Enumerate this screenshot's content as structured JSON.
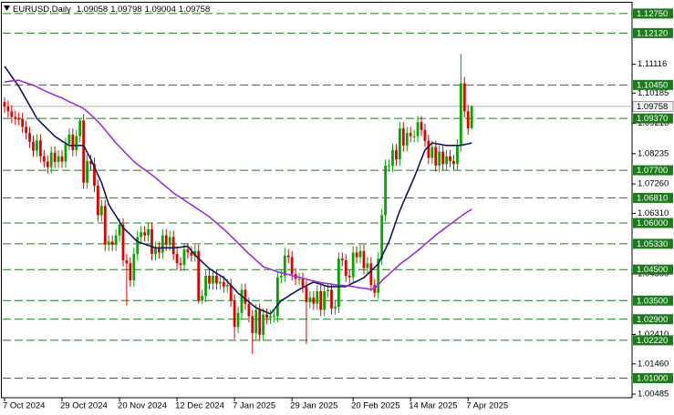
{
  "chart_data": {
    "type": "candlestick",
    "title": "EURUSD,Daily",
    "categories": [
      "7 Oct 2024",
      null,
      null,
      null,
      null,
      null,
      null,
      null,
      null,
      null,
      null,
      null,
      null,
      null,
      null,
      null,
      "29 Oct 2024",
      null,
      null,
      null,
      null,
      null,
      null,
      null,
      null,
      null,
      null,
      null,
      null,
      null,
      null,
      null,
      "20 Nov 2024",
      null,
      null,
      null,
      null,
      null,
      null,
      null,
      null,
      null,
      null,
      null,
      null,
      null,
      null,
      null,
      "12 Dec 2024",
      null,
      null,
      null,
      null,
      null,
      null,
      null,
      null,
      null,
      null,
      null,
      null,
      null,
      null,
      null,
      "7 Jan 2025",
      null,
      null,
      null,
      null,
      null,
      null,
      null,
      null,
      null,
      null,
      null,
      null,
      null,
      null,
      null,
      "29 Jan 2025",
      null,
      null,
      null,
      null,
      null,
      null,
      null,
      null,
      null,
      null,
      null,
      null,
      null,
      null,
      null,
      null,
      "20 Feb 2025",
      null,
      null,
      null,
      null,
      null,
      null,
      null,
      null,
      null,
      null,
      null,
      null,
      null,
      null,
      null,
      "14 Mar 2025",
      null,
      null,
      null,
      null,
      null,
      null,
      null,
      null,
      null,
      null,
      null,
      null,
      null,
      null,
      null,
      "7 Apr 2025",
      null
    ],
    "open": [
      1.099,
      1.0975,
      1.096,
      1.0942,
      1.0936,
      1.0935,
      1.091,
      1.089,
      1.0862,
      1.0833,
      1.0866,
      1.0815,
      1.0798,
      1.078,
      1.0827,
      1.0797,
      1.0815,
      1.0798,
      1.0855,
      1.0885,
      1.0835,
      1.088,
      1.093,
      1.073,
      1.08,
      1.079,
      1.072,
      1.0625,
      1.0655,
      1.053,
      1.054,
      1.053,
      1.056,
      1.0595,
      1.048,
      1.047,
      1.0415,
      1.05,
      1.0555,
      1.057,
      1.056,
      1.058,
      1.05,
      1.052,
      1.0505,
      1.056,
      1.053,
      1.0555,
      1.05,
      1.047,
      1.0465,
      1.0515,
      1.0505,
      1.0495,
      1.051,
      1.035,
      1.0365,
      1.043,
      1.0405,
      1.043,
      1.0405,
      1.041,
      1.0395,
      1.04,
      1.035,
      1.0265,
      1.031,
      1.0385,
      1.034,
      1.03,
      1.0245,
      1.032,
      1.024,
      1.0305,
      1.0295,
      1.03,
      1.03,
      1.0425,
      1.043,
      1.0495,
      1.049,
      1.0435,
      1.042,
      1.042,
      1.0395,
      1.0345,
      1.036,
      1.034,
      1.038,
      1.032,
      1.038,
      1.0385,
      1.0325,
      1.033,
      1.0485,
      1.048,
      1.043,
      1.0425,
      1.0505,
      1.049,
      1.051,
      1.0455,
      1.047,
      1.04,
      1.0375,
      1.0485,
      1.0625,
      1.0785,
      1.0785,
      1.0835,
      1.0805,
      1.0905,
      1.085,
      1.089,
      1.088,
      1.088,
      1.0925,
      1.09,
      1.0865,
      1.081,
      1.0845,
      1.0785,
      1.083,
      1.079,
      1.0815,
      1.08,
      1.079,
      1.085,
      1.105,
      1.096,
      1.09058
    ],
    "high": [
      1.1005,
      1.0995,
      1.098,
      1.0962,
      1.0956,
      1.0955,
      1.093,
      1.091,
      1.0882,
      1.0886,
      1.0886,
      1.0835,
      1.0818,
      1.0847,
      1.0847,
      1.0835,
      1.0835,
      1.0875,
      1.0905,
      1.0905,
      1.09,
      1.0937,
      1.095,
      1.082,
      1.082,
      1.081,
      1.074,
      1.0675,
      1.0675,
      1.056,
      1.056,
      1.058,
      1.0615,
      1.0615,
      1.05,
      1.049,
      1.052,
      1.0575,
      1.059,
      1.059,
      1.06,
      1.06,
      1.054,
      1.054,
      1.058,
      1.058,
      1.0575,
      1.0575,
      1.052,
      1.049,
      1.0535,
      1.0535,
      1.0525,
      1.053,
      1.053,
      1.0385,
      1.045,
      1.045,
      1.045,
      1.045,
      1.043,
      1.043,
      1.042,
      1.042,
      1.037,
      1.033,
      1.0405,
      1.0405,
      1.036,
      1.032,
      1.034,
      1.034,
      1.0325,
      1.0325,
      1.032,
      1.032,
      1.0445,
      1.045,
      1.052,
      1.0515,
      1.051,
      1.0455,
      1.044,
      1.044,
      1.0415,
      1.038,
      1.038,
      1.04,
      1.04,
      1.04,
      1.0405,
      1.0405,
      1.035,
      1.0505,
      1.0505,
      1.05,
      1.045,
      1.0525,
      1.0525,
      1.053,
      1.053,
      1.049,
      1.049,
      1.042,
      1.0505,
      1.0645,
      1.0805,
      1.0805,
      1.0855,
      1.0855,
      1.0925,
      1.0925,
      1.091,
      1.091,
      1.09,
      1.0945,
      1.0945,
      1.092,
      1.0885,
      1.0865,
      1.0865,
      1.085,
      1.085,
      1.0835,
      1.0835,
      1.082,
      1.087,
      1.1145,
      1.107,
      1.098,
      1.09798
    ],
    "low": [
      1.0955,
      1.094,
      1.0922,
      1.0916,
      1.0915,
      1.089,
      1.087,
      1.0842,
      1.0813,
      1.0813,
      1.0795,
      1.0778,
      1.076,
      1.076,
      1.0777,
      1.0777,
      1.0778,
      1.0778,
      1.0835,
      1.0815,
      1.0815,
      1.086,
      1.071,
      1.071,
      1.077,
      1.07,
      1.0605,
      1.0605,
      1.051,
      1.051,
      1.051,
      1.051,
      1.054,
      1.046,
      1.0335,
      1.0395,
      1.0395,
      1.048,
      1.0535,
      1.054,
      1.054,
      1.048,
      1.048,
      1.0485,
      1.0485,
      1.051,
      1.051,
      1.048,
      1.045,
      1.0445,
      1.0445,
      1.0485,
      1.0475,
      1.0475,
      1.034,
      1.034,
      1.0345,
      1.0385,
      1.0385,
      1.0385,
      1.0385,
      1.0375,
      1.0375,
      1.033,
      1.0226,
      1.0245,
      1.029,
      1.032,
      1.028,
      1.0178,
      1.0225,
      1.022,
      1.022,
      1.0275,
      1.0275,
      1.028,
      1.028,
      1.0405,
      1.041,
      1.047,
      1.0415,
      1.04,
      1.04,
      1.0375,
      1.021,
      1.0325,
      1.032,
      1.032,
      1.03,
      1.03,
      1.036,
      1.0305,
      1.0305,
      1.031,
      1.046,
      1.041,
      1.0405,
      1.0405,
      1.047,
      1.047,
      1.0435,
      1.0435,
      1.038,
      1.036,
      1.0355,
      1.0465,
      1.0605,
      1.0765,
      1.0765,
      1.0785,
      1.0785,
      1.083,
      1.083,
      1.086,
      1.086,
      1.086,
      1.088,
      1.0845,
      1.079,
      1.079,
      1.0765,
      1.0765,
      1.077,
      1.077,
      1.078,
      1.077,
      1.077,
      1.083,
      1.094,
      1.0885,
      1.09004
    ],
    "close": [
      1.0975,
      1.096,
      1.0942,
      1.0936,
      1.0935,
      1.091,
      1.089,
      1.0862,
      1.0833,
      1.0866,
      1.0815,
      1.0798,
      1.078,
      1.0827,
      1.0797,
      1.0815,
      1.0798,
      1.0855,
      1.0885,
      1.0835,
      1.088,
      1.093,
      1.073,
      1.08,
      1.079,
      1.072,
      1.0625,
      1.0655,
      1.053,
      1.054,
      1.053,
      1.056,
      1.0595,
      1.048,
      1.047,
      1.0415,
      1.05,
      1.0555,
      1.057,
      1.056,
      1.058,
      1.05,
      1.052,
      1.0505,
      1.056,
      1.053,
      1.0555,
      1.05,
      1.047,
      1.0465,
      1.0515,
      1.0505,
      1.0495,
      1.051,
      1.035,
      1.0365,
      1.043,
      1.0405,
      1.043,
      1.0405,
      1.041,
      1.0395,
      1.04,
      1.035,
      1.0265,
      1.031,
      1.0385,
      1.034,
      1.03,
      1.0245,
      1.032,
      1.024,
      1.0305,
      1.0295,
      1.03,
      1.03,
      1.0425,
      1.043,
      1.0495,
      1.049,
      1.0435,
      1.042,
      1.042,
      1.0395,
      1.0345,
      1.036,
      1.034,
      1.038,
      1.032,
      1.038,
      1.0385,
      1.0325,
      1.033,
      1.0485,
      1.048,
      1.043,
      1.0425,
      1.0505,
      1.049,
      1.051,
      1.0455,
      1.047,
      1.04,
      1.0375,
      1.0485,
      1.0625,
      1.0785,
      1.0785,
      1.0835,
      1.0805,
      1.0905,
      1.085,
      1.089,
      1.088,
      1.088,
      1.0925,
      1.09,
      1.0865,
      1.081,
      1.0845,
      1.0785,
      1.083,
      1.079,
      1.0815,
      1.08,
      1.079,
      1.085,
      1.105,
      1.096,
      1.0905,
      1.09758
    ],
    "up_color": "#00a800",
    "down_color": "#e00000",
    "overlays": [
      {
        "color": "#15155a",
        "values": [
          1.1105,
          1.1089,
          1.1072,
          1.1056,
          1.104,
          1.1019,
          1.0999,
          1.0978,
          1.0958,
          1.0937,
          1.0925,
          1.0914,
          1.0902,
          1.0891,
          1.0879,
          1.0872,
          1.0864,
          1.0857,
          1.085,
          1.085,
          1.085,
          1.085,
          1.085,
          1.0828,
          1.0806,
          1.0781,
          1.0755,
          1.073,
          1.0695,
          1.066,
          1.0641,
          1.0623,
          1.0604,
          1.0585,
          1.0574,
          1.0563,
          1.0551,
          1.054,
          1.0536,
          1.0532,
          1.0528,
          1.0524,
          1.052,
          1.052,
          1.052,
          1.052,
          1.052,
          1.052,
          1.0521,
          1.0522,
          1.0524,
          1.0525,
          1.0511,
          1.0497,
          1.0486,
          1.0475,
          1.0464,
          1.0453,
          1.0446,
          1.0438,
          1.0431,
          1.0424,
          1.0412,
          1.0399,
          1.0387,
          1.0374,
          1.0365,
          1.0355,
          1.0346,
          1.0336,
          1.0327,
          1.0322,
          1.0317,
          1.0312,
          1.0307,
          1.0321,
          1.0336,
          1.035,
          1.0357,
          1.0364,
          1.0372,
          1.0379,
          1.0386,
          1.0392,
          1.0398,
          1.0404,
          1.041,
          1.0406,
          1.0403,
          1.0399,
          1.0395,
          1.0395,
          1.0395,
          1.0395,
          1.0395,
          1.0395,
          1.0401,
          1.0407,
          1.0412,
          1.0418,
          1.0424,
          1.0435,
          1.0446,
          1.0457,
          1.0468,
          1.0492,
          1.0516,
          1.054,
          1.0573,
          1.0607,
          1.064,
          1.0667,
          1.0694,
          1.072,
          1.0747,
          1.0776,
          1.0806,
          1.0835,
          1.0847,
          1.0858,
          1.0856,
          1.0854,
          1.0852,
          1.085,
          1.085,
          1.085,
          1.085,
          1.085,
          1.0853,
          1.0855,
          1.0858
        ]
      },
      {
        "color": "#9b30d9",
        "values": [
          1.1055,
          1.1056,
          1.1058,
          1.1059,
          1.106,
          1.1056,
          1.1052,
          1.1048,
          1.1044,
          1.1039,
          1.1033,
          1.1027,
          1.1022,
          1.1017,
          1.1012,
          1.1007,
          1.1003,
          1.0997,
          1.0991,
          1.0986,
          1.098,
          1.0975,
          1.0969,
          1.0959,
          1.0949,
          1.0938,
          1.0927,
          1.0914,
          1.09,
          1.0886,
          1.0872,
          1.0858,
          1.0846,
          1.0834,
          1.0822,
          1.081,
          1.0798,
          1.0789,
          1.078,
          1.0772,
          1.0764,
          1.0755,
          1.0746,
          1.0736,
          1.0726,
          1.0717,
          1.0707,
          1.0697,
          1.0689,
          1.0682,
          1.0674,
          1.0666,
          1.0659,
          1.0651,
          1.0643,
          1.0636,
          1.0628,
          1.062,
          1.061,
          1.06,
          1.059,
          1.058,
          1.057,
          1.0558,
          1.0547,
          1.0535,
          1.0524,
          1.0512,
          1.0501,
          1.0491,
          1.048,
          1.047,
          1.0459,
          1.0455,
          1.0451,
          1.0447,
          1.0443,
          1.0439,
          1.0436,
          1.0434,
          1.0431,
          1.0428,
          1.0425,
          1.0422,
          1.0419,
          1.0416,
          1.0413,
          1.041,
          1.0408,
          1.0406,
          1.0405,
          1.0403,
          1.0401,
          1.04,
          1.0399,
          1.0398,
          1.0397,
          1.0395,
          1.0393,
          1.0391,
          1.039,
          1.0388,
          1.0386,
          1.039,
          1.04,
          1.0414,
          1.0425,
          1.0435,
          1.0446,
          1.0456,
          1.0467,
          1.0476,
          1.0484,
          1.0493,
          1.0502,
          1.0511,
          1.0521,
          1.0531,
          1.0541,
          1.0551,
          1.0561,
          1.057,
          1.0578,
          1.0587,
          1.0596,
          1.0604,
          1.0613,
          1.0621,
          1.063,
          1.0637,
          1.0644
        ]
      }
    ],
    "levels": [
      {
        "value": 1.1275,
        "label": "1.12750"
      },
      {
        "value": 1.1212,
        "label": "1.12120"
      },
      {
        "value": 1.1045,
        "label": "1.10450"
      },
      {
        "value": 1.0937,
        "label": "1.09370"
      },
      {
        "value": 1.077,
        "label": "1.07700"
      },
      {
        "value": 1.0681,
        "label": "1.06810"
      },
      {
        "value": 1.06,
        "label": "1.06000"
      },
      {
        "value": 1.0533,
        "label": "1.05330"
      },
      {
        "value": 1.045,
        "label": "1.04500"
      },
      {
        "value": 1.035,
        "label": "1.03500"
      },
      {
        "value": 1.029,
        "label": "1.02900"
      },
      {
        "value": 1.0222,
        "label": "1.02220"
      },
      {
        "value": 1.01,
        "label": "1.01000"
      }
    ],
    "level_color": "#1c7c1c",
    "ylim": [
      1.0037,
      1.1307
    ],
    "yticks": [
      1.11116,
      1.10185,
      {
        "value": 1.0921,
        "label": "1.09210"
      },
      1.08235,
      {
        "value": 1.0726,
        "label": "1.07260"
      },
      {
        "value": 1.0631,
        "label": "1.06310"
      },
      {
        "value": 1.0436,
        "label": "1.04360"
      },
      {
        "value": 1.0241,
        "label": "1.02410"
      },
      {
        "value": 1.0146,
        "label": "1.01460"
      },
      1.00485
    ]
  }
}
